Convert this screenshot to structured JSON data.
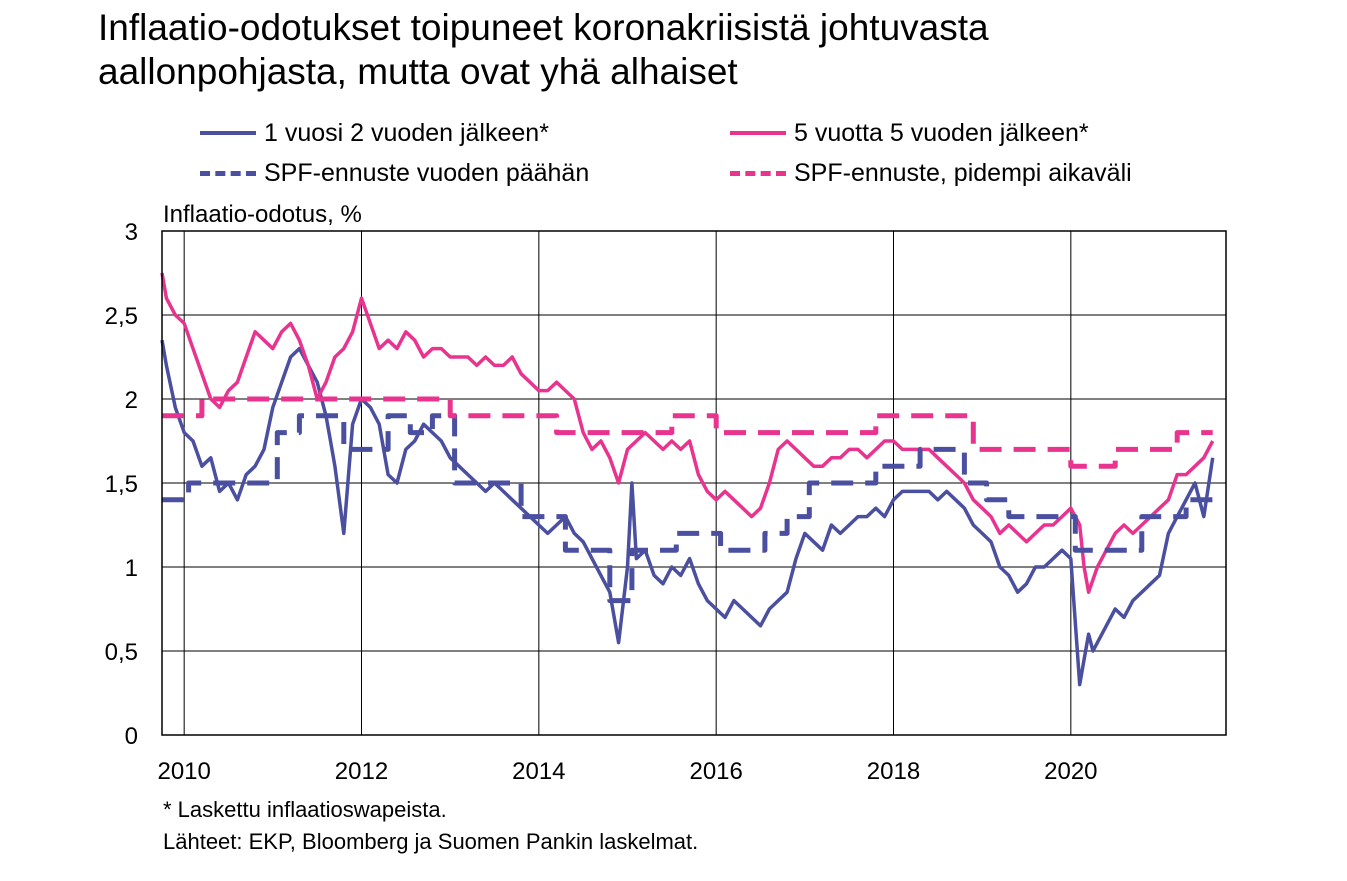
{
  "title_lines": [
    "Inflaatio-odotukset toipuneet koronakriisistä johtuvasta",
    "aallonpohjasta, mutta ovat yhä alhaiset"
  ],
  "legend": {
    "series1": "1 vuosi 2 vuoden jälkeen*",
    "series2": "5 vuotta 5 vuoden jälkeen*",
    "series3": "SPF-ennuste vuoden päähän",
    "series4": "SPF-ennuste, pidempi aikaväli"
  },
  "footnote": {
    "line1": "* Laskettu inflaatioswapeista.",
    "line2": "Lähteet: EKP, Bloomberg ja Suomen Pankin laskelmat."
  },
  "colors": {
    "blue": "#4a4fa0",
    "pink": "#e8338f",
    "grid": "#000000"
  },
  "chart_data": {
    "type": "line",
    "ylabel": "Inflaatio-odotus, %",
    "ylim": [
      0,
      3
    ],
    "xlim": [
      2009.75,
      2021.75
    ],
    "yticks": [
      0,
      0.5,
      1,
      1.5,
      2,
      2.5,
      3
    ],
    "ytick_labels": [
      "0",
      "0,5",
      "1",
      "1,5",
      "2",
      "2,5",
      "3"
    ],
    "xticks": [
      2010,
      2012,
      2014,
      2016,
      2018,
      2020
    ],
    "xtick_labels": [
      "2010",
      "2012",
      "2014",
      "2016",
      "2018",
      "2020"
    ],
    "grid": true,
    "series": [
      {
        "name": "1 vuosi 2 vuoden jälkeen*",
        "style": "solid",
        "color": "#4a4fa0",
        "x": [
          2009.75,
          2009.8,
          2009.9,
          2010.0,
          2010.1,
          2010.2,
          2010.3,
          2010.4,
          2010.5,
          2010.6,
          2010.7,
          2010.8,
          2010.9,
          2011.0,
          2011.1,
          2011.2,
          2011.3,
          2011.4,
          2011.5,
          2011.6,
          2011.65,
          2011.7,
          2011.8,
          2011.9,
          2012.0,
          2012.1,
          2012.2,
          2012.3,
          2012.4,
          2012.5,
          2012.6,
          2012.7,
          2012.8,
          2012.9,
          2013.0,
          2013.1,
          2013.2,
          2013.3,
          2013.4,
          2013.5,
          2013.6,
          2013.7,
          2013.8,
          2013.9,
          2014.0,
          2014.1,
          2014.2,
          2014.3,
          2014.4,
          2014.5,
          2014.6,
          2014.7,
          2014.8,
          2014.9,
          2015.0,
          2015.05,
          2015.1,
          2015.2,
          2015.3,
          2015.4,
          2015.5,
          2015.6,
          2015.7,
          2015.8,
          2015.9,
          2016.0,
          2016.1,
          2016.2,
          2016.3,
          2016.4,
          2016.5,
          2016.6,
          2016.7,
          2016.8,
          2016.9,
          2017.0,
          2017.1,
          2017.2,
          2017.3,
          2017.4,
          2017.5,
          2017.6,
          2017.7,
          2017.8,
          2017.9,
          2018.0,
          2018.1,
          2018.2,
          2018.3,
          2018.4,
          2018.5,
          2018.6,
          2018.7,
          2018.8,
          2018.9,
          2019.0,
          2019.1,
          2019.2,
          2019.3,
          2019.4,
          2019.5,
          2019.6,
          2019.7,
          2019.8,
          2019.9,
          2020.0,
          2020.1,
          2020.15,
          2020.2,
          2020.25,
          2020.3,
          2020.4,
          2020.5,
          2020.6,
          2020.7,
          2020.8,
          2020.9,
          2021.0,
          2021.1,
          2021.2,
          2021.3,
          2021.4,
          2021.5,
          2021.6
        ],
        "y": [
          2.35,
          2.2,
          1.95,
          1.8,
          1.75,
          1.6,
          1.65,
          1.45,
          1.5,
          1.4,
          1.55,
          1.6,
          1.7,
          1.95,
          2.1,
          2.25,
          2.3,
          2.2,
          2.1,
          1.9,
          1.75,
          1.6,
          1.2,
          1.85,
          2.0,
          1.95,
          1.85,
          1.55,
          1.5,
          1.7,
          1.75,
          1.85,
          1.8,
          1.75,
          1.65,
          1.6,
          1.55,
          1.5,
          1.45,
          1.5,
          1.45,
          1.4,
          1.35,
          1.3,
          1.25,
          1.2,
          1.25,
          1.3,
          1.2,
          1.15,
          1.05,
          0.95,
          0.85,
          0.55,
          1.0,
          1.5,
          1.05,
          1.1,
          0.95,
          0.9,
          1.0,
          0.95,
          1.05,
          0.9,
          0.8,
          0.75,
          0.7,
          0.8,
          0.75,
          0.7,
          0.65,
          0.75,
          0.8,
          0.85,
          1.05,
          1.2,
          1.15,
          1.1,
          1.25,
          1.2,
          1.25,
          1.3,
          1.3,
          1.35,
          1.3,
          1.4,
          1.45,
          1.45,
          1.45,
          1.45,
          1.4,
          1.45,
          1.4,
          1.35,
          1.25,
          1.2,
          1.15,
          1.0,
          0.95,
          0.85,
          0.9,
          1.0,
          1.0,
          1.05,
          1.1,
          1.05,
          0.3,
          0.45,
          0.6,
          0.5,
          0.55,
          0.65,
          0.75,
          0.7,
          0.8,
          0.85,
          0.9,
          0.95,
          1.2,
          1.3,
          1.4,
          1.5,
          1.3,
          1.65
        ]
      },
      {
        "name": "5 vuotta 5 vuoden jälkeen*",
        "style": "solid",
        "color": "#e8338f",
        "x": [
          2009.75,
          2009.8,
          2009.9,
          2010.0,
          2010.1,
          2010.2,
          2010.3,
          2010.4,
          2010.5,
          2010.6,
          2010.7,
          2010.8,
          2010.9,
          2011.0,
          2011.1,
          2011.2,
          2011.3,
          2011.4,
          2011.5,
          2011.6,
          2011.7,
          2011.8,
          2011.9,
          2012.0,
          2012.1,
          2012.2,
          2012.3,
          2012.4,
          2012.5,
          2012.6,
          2012.7,
          2012.8,
          2012.9,
          2013.0,
          2013.1,
          2013.2,
          2013.3,
          2013.4,
          2013.5,
          2013.6,
          2013.7,
          2013.8,
          2013.9,
          2014.0,
          2014.1,
          2014.2,
          2014.3,
          2014.4,
          2014.5,
          2014.6,
          2014.7,
          2014.8,
          2014.9,
          2015.0,
          2015.1,
          2015.2,
          2015.3,
          2015.4,
          2015.5,
          2015.6,
          2015.7,
          2015.8,
          2015.9,
          2016.0,
          2016.1,
          2016.2,
          2016.3,
          2016.4,
          2016.5,
          2016.6,
          2016.7,
          2016.8,
          2016.9,
          2017.0,
          2017.1,
          2017.2,
          2017.3,
          2017.4,
          2017.5,
          2017.6,
          2017.7,
          2017.8,
          2017.9,
          2018.0,
          2018.1,
          2018.2,
          2018.3,
          2018.4,
          2018.5,
          2018.6,
          2018.7,
          2018.8,
          2018.9,
          2019.0,
          2019.1,
          2019.2,
          2019.3,
          2019.4,
          2019.5,
          2019.6,
          2019.7,
          2019.8,
          2019.9,
          2020.0,
          2020.1,
          2020.15,
          2020.2,
          2020.3,
          2020.4,
          2020.5,
          2020.6,
          2020.7,
          2020.8,
          2020.9,
          2021.0,
          2021.1,
          2021.2,
          2021.3,
          2021.4,
          2021.5,
          2021.6
        ],
        "y": [
          2.75,
          2.6,
          2.5,
          2.45,
          2.3,
          2.15,
          2.0,
          1.95,
          2.05,
          2.1,
          2.25,
          2.4,
          2.35,
          2.3,
          2.4,
          2.45,
          2.35,
          2.2,
          2.0,
          2.1,
          2.25,
          2.3,
          2.4,
          2.6,
          2.45,
          2.3,
          2.35,
          2.3,
          2.4,
          2.35,
          2.25,
          2.3,
          2.3,
          2.25,
          2.25,
          2.25,
          2.2,
          2.25,
          2.2,
          2.2,
          2.25,
          2.15,
          2.1,
          2.05,
          2.05,
          2.1,
          2.05,
          2.0,
          1.8,
          1.7,
          1.75,
          1.65,
          1.5,
          1.7,
          1.75,
          1.8,
          1.75,
          1.7,
          1.75,
          1.7,
          1.75,
          1.55,
          1.45,
          1.4,
          1.45,
          1.4,
          1.35,
          1.3,
          1.35,
          1.5,
          1.7,
          1.75,
          1.7,
          1.65,
          1.6,
          1.6,
          1.65,
          1.65,
          1.7,
          1.7,
          1.65,
          1.7,
          1.75,
          1.75,
          1.7,
          1.7,
          1.7,
          1.7,
          1.65,
          1.6,
          1.55,
          1.5,
          1.4,
          1.35,
          1.3,
          1.2,
          1.25,
          1.2,
          1.15,
          1.2,
          1.25,
          1.25,
          1.3,
          1.35,
          1.25,
          1.0,
          0.85,
          1.0,
          1.1,
          1.2,
          1.25,
          1.2,
          1.25,
          1.3,
          1.35,
          1.4,
          1.55,
          1.55,
          1.6,
          1.65,
          1.75
        ]
      },
      {
        "name": "SPF-ennuste vuoden päähän",
        "style": "dashed",
        "color": "#4a4fa0",
        "x": [
          2009.75,
          2010.05,
          2010.05,
          2010.3,
          2010.3,
          2010.55,
          2010.55,
          2010.8,
          2010.8,
          2011.05,
          2011.05,
          2011.3,
          2011.3,
          2011.55,
          2011.55,
          2011.8,
          2011.8,
          2012.05,
          2012.05,
          2012.3,
          2012.3,
          2012.55,
          2012.55,
          2012.8,
          2012.8,
          2013.05,
          2013.05,
          2013.3,
          2013.3,
          2013.55,
          2013.55,
          2013.8,
          2013.8,
          2014.05,
          2014.05,
          2014.3,
          2014.3,
          2014.55,
          2014.55,
          2014.8,
          2014.8,
          2015.05,
          2015.05,
          2015.3,
          2015.3,
          2015.55,
          2015.55,
          2015.8,
          2015.8,
          2016.05,
          2016.05,
          2016.3,
          2016.3,
          2016.55,
          2016.55,
          2016.8,
          2016.8,
          2017.05,
          2017.05,
          2017.3,
          2017.3,
          2017.55,
          2017.55,
          2017.8,
          2017.8,
          2018.05,
          2018.05,
          2018.3,
          2018.3,
          2018.55,
          2018.55,
          2018.8,
          2018.8,
          2019.05,
          2019.05,
          2019.3,
          2019.3,
          2019.55,
          2019.55,
          2019.8,
          2019.8,
          2020.05,
          2020.05,
          2020.3,
          2020.3,
          2020.55,
          2020.55,
          2020.8,
          2020.8,
          2021.05,
          2021.05,
          2021.3,
          2021.3,
          2021.6
        ],
        "y": [
          1.4,
          1.4,
          1.5,
          1.5,
          1.5,
          1.5,
          1.5,
          1.5,
          1.5,
          1.5,
          1.8,
          1.8,
          1.9,
          1.9,
          1.9,
          1.9,
          1.7,
          1.7,
          1.7,
          1.7,
          1.9,
          1.9,
          1.8,
          1.8,
          1.9,
          1.9,
          1.5,
          1.5,
          1.5,
          1.5,
          1.5,
          1.5,
          1.3,
          1.3,
          1.3,
          1.3,
          1.1,
          1.1,
          1.1,
          1.1,
          0.8,
          0.8,
          1.1,
          1.1,
          1.1,
          1.1,
          1.2,
          1.2,
          1.2,
          1.2,
          1.1,
          1.1,
          1.1,
          1.1,
          1.2,
          1.2,
          1.3,
          1.3,
          1.5,
          1.5,
          1.5,
          1.5,
          1.5,
          1.5,
          1.6,
          1.6,
          1.6,
          1.6,
          1.7,
          1.7,
          1.7,
          1.7,
          1.5,
          1.5,
          1.4,
          1.4,
          1.3,
          1.3,
          1.3,
          1.3,
          1.3,
          1.3,
          1.1,
          1.1,
          1.1,
          1.1,
          1.1,
          1.1,
          1.3,
          1.3,
          1.3,
          1.3,
          1.4,
          1.4
        ]
      },
      {
        "name": "SPF-ennuste, pidempi aikaväli",
        "style": "dashed",
        "color": "#e8338f",
        "x": [
          2009.75,
          2010.2,
          2010.2,
          2011.0,
          2011.0,
          2012.0,
          2012.0,
          2013.0,
          2013.0,
          2013.8,
          2013.8,
          2014.2,
          2014.2,
          2015.0,
          2015.0,
          2015.5,
          2015.5,
          2016.0,
          2016.0,
          2016.8,
          2016.8,
          2017.8,
          2017.8,
          2018.9,
          2018.9,
          2019.6,
          2019.6,
          2020.0,
          2020.0,
          2020.5,
          2020.5,
          2021.2,
          2021.2,
          2021.6
        ],
        "y": [
          1.9,
          1.9,
          2.0,
          2.0,
          2.0,
          2.0,
          2.0,
          2.0,
          1.9,
          1.9,
          1.9,
          1.9,
          1.8,
          1.8,
          1.8,
          1.8,
          1.9,
          1.9,
          1.8,
          1.8,
          1.8,
          1.8,
          1.9,
          1.9,
          1.7,
          1.7,
          1.7,
          1.7,
          1.6,
          1.6,
          1.7,
          1.7,
          1.8,
          1.8
        ]
      }
    ]
  }
}
